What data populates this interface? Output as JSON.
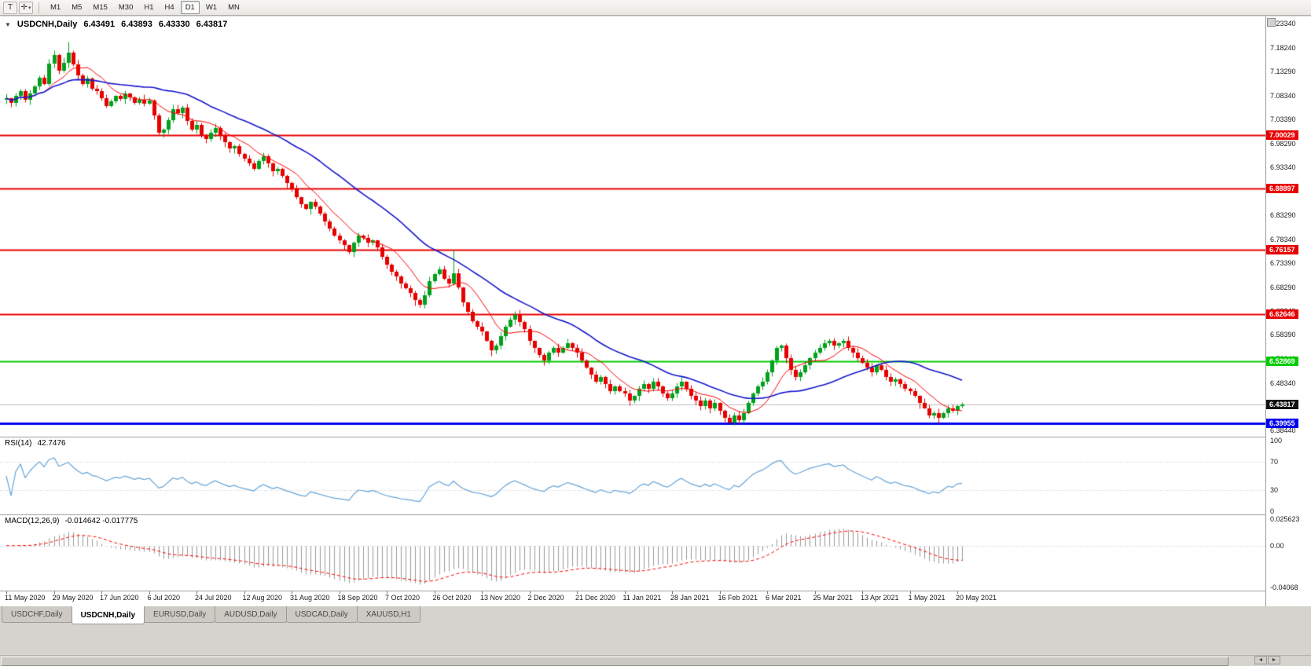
{
  "icons": {
    "text_tool": "T",
    "cursor_tool": "✛",
    "dropdown": "▾",
    "collapse": "▼",
    "scroll_left": "◄",
    "scroll_right": "►"
  },
  "toolbar": {
    "timeframes": [
      "M1",
      "M5",
      "M15",
      "M30",
      "H1",
      "H4",
      "D1",
      "W1",
      "MN"
    ],
    "active_timeframe": "D1"
  },
  "chart": {
    "title": {
      "symbol": "USDCNH,Daily",
      "open": "6.43491",
      "high": "6.43893",
      "low": "6.43330",
      "close": "6.43817"
    },
    "current_price": {
      "value": 6.43817,
      "label": "6.43817",
      "badge_color": "#111111"
    },
    "levels": [
      {
        "label": "7.00029",
        "value": 7.00029,
        "color": "#e80000",
        "width": 2
      },
      {
        "label": "6.88897",
        "value": 6.88897,
        "color": "#e80000",
        "width": 2
      },
      {
        "label": "6.76157",
        "value": 6.76157,
        "color": "#e80000",
        "width": 2
      },
      {
        "label": "6.62646",
        "value": 6.62646,
        "color": "#e80000",
        "width": 2
      },
      {
        "label": "6.52869",
        "value": 6.52869,
        "color": "#00cc00",
        "width": 2
      },
      {
        "label": "6.39955",
        "value": 6.39955,
        "color": "#0000ee",
        "width": 3
      }
    ],
    "price_axis": {
      "min": 6.3844,
      "max": 7.2334,
      "ticks": [
        "7.23340",
        "7.18240",
        "7.13290",
        "7.08340",
        "7.03390",
        "6.98290",
        "6.93340",
        "6.88390",
        "6.83290",
        "6.78340",
        "6.73390",
        "6.68290",
        "6.63340",
        "6.58390",
        "6.53340",
        "6.48340",
        "6.43340",
        "6.38440"
      ]
    }
  },
  "rsi": {
    "label": "RSI(14)",
    "value": "42.7476",
    "ticks": [
      "100",
      "70",
      "30",
      "0"
    ],
    "levels": [
      70,
      30
    ],
    "range": [
      0,
      100
    ]
  },
  "macd": {
    "label": "MACD(12,26,9)",
    "value": "-0.014642 -0.017775",
    "ticks": [
      "0.025623",
      "0.00",
      "-0.04068"
    ],
    "axis_max": 0.025623,
    "axis_min": -0.04068,
    "fast": 12,
    "slow": 26,
    "signal": 9
  },
  "chart_data": {
    "type": "candlestick",
    "title": "USDCNH,Daily",
    "x_labels": [
      "11 May 2020",
      "29 May 2020",
      "17 Jun 2020",
      "6 Jul 2020",
      "24 Jul 2020",
      "12 Aug 2020",
      "31 Aug 2020",
      "18 Sep 2020",
      "7 Oct 2020",
      "26 Oct 2020",
      "13 Nov 2020",
      "2 Dec 2020",
      "21 Dec 2020",
      "11 Jan 2021",
      "28 Jan 2021",
      "16 Feb 2021",
      "6 Mar 2021",
      "25 Mar 2021",
      "13 Apr 2021",
      "1 May 2021",
      "20 May 2021"
    ],
    "candles_per_label": 10,
    "price_range": [
      6.3844,
      7.2334
    ],
    "closes": [
      7.078,
      7.068,
      7.082,
      7.092,
      7.075,
      7.088,
      7.102,
      7.12,
      7.108,
      7.15,
      7.168,
      7.135,
      7.152,
      7.172,
      7.148,
      7.125,
      7.108,
      7.118,
      7.098,
      7.092,
      7.078,
      7.062,
      7.071,
      7.082,
      7.076,
      7.088,
      7.079,
      7.068,
      7.075,
      7.066,
      7.072,
      7.042,
      7.005,
      7.012,
      7.032,
      7.055,
      7.046,
      7.058,
      7.03,
      7.012,
      7.022,
      7.001,
      6.992,
      7.006,
      7.016,
      7.0,
      6.986,
      6.972,
      6.978,
      6.962,
      6.951,
      6.941,
      6.931,
      6.946,
      6.956,
      6.941,
      6.926,
      6.931,
      6.916,
      6.901,
      6.889,
      6.871,
      6.856,
      6.846,
      6.861,
      6.851,
      6.836,
      6.821,
      6.806,
      6.791,
      6.781,
      6.771,
      6.756,
      6.776,
      6.791,
      6.786,
      6.776,
      6.781,
      6.766,
      6.746,
      6.731,
      6.716,
      6.706,
      6.691,
      6.681,
      6.671,
      6.656,
      6.646,
      6.666,
      6.696,
      6.711,
      6.721,
      6.701,
      6.691,
      6.712,
      6.682,
      6.652,
      6.632,
      6.612,
      6.601,
      6.591,
      6.571,
      6.551,
      6.561,
      6.581,
      6.601,
      6.616,
      6.626,
      6.611,
      6.596,
      6.571,
      6.556,
      6.541,
      6.531,
      6.546,
      6.556,
      6.546,
      6.556,
      6.566,
      6.556,
      6.546,
      6.531,
      6.516,
      6.501,
      6.486,
      6.496,
      6.481,
      6.466,
      6.476,
      6.466,
      6.461,
      6.446,
      6.456,
      6.471,
      6.481,
      6.471,
      6.486,
      6.476,
      6.461,
      6.451,
      6.461,
      6.476,
      6.486,
      6.471,
      6.456,
      6.446,
      6.436,
      6.446,
      6.431,
      6.441,
      6.426,
      6.411,
      6.401,
      6.416,
      6.406,
      6.421,
      6.441,
      6.461,
      6.476,
      6.486,
      6.506,
      6.531,
      6.556,
      6.561,
      6.536,
      6.511,
      6.496,
      6.506,
      6.521,
      6.536,
      6.546,
      6.556,
      6.566,
      6.571,
      6.561,
      6.566,
      6.571,
      6.556,
      6.546,
      6.536,
      6.526,
      6.516,
      6.506,
      6.521,
      6.511,
      6.496,
      6.486,
      6.491,
      6.481,
      6.471,
      6.466,
      6.456,
      6.441,
      6.431,
      6.416,
      6.421,
      6.411,
      6.421,
      6.431,
      6.426,
      6.436,
      6.438
    ],
    "wick_highs": {
      "13": 7.196,
      "94": 6.762
    },
    "wick_lows": {
      "102": 6.54,
      "152": 6.3985,
      "196": 6.4015
    },
    "ma_fast_period": 9,
    "ma_slow_period": 30
  },
  "colors": {
    "up": "#00a11c",
    "down": "#e60000",
    "ma_fast": "#ff0000",
    "ma_slow": "#1515cc",
    "rsi_line": "#63a3d8",
    "macd_hist": "#9a9a9a",
    "macd_signal": "#ff0000",
    "current_price_line": "#bcbcbc",
    "indicator_level": "#c4c4c4"
  },
  "tabs": {
    "items": [
      "USDCHF,Daily",
      "USDCNH,Daily",
      "EURUSD,Daily",
      "AUDUSD,Daily",
      "USDCAD,Daily",
      "XAUUSD,H1"
    ],
    "active": "USDCNH,Daily"
  }
}
